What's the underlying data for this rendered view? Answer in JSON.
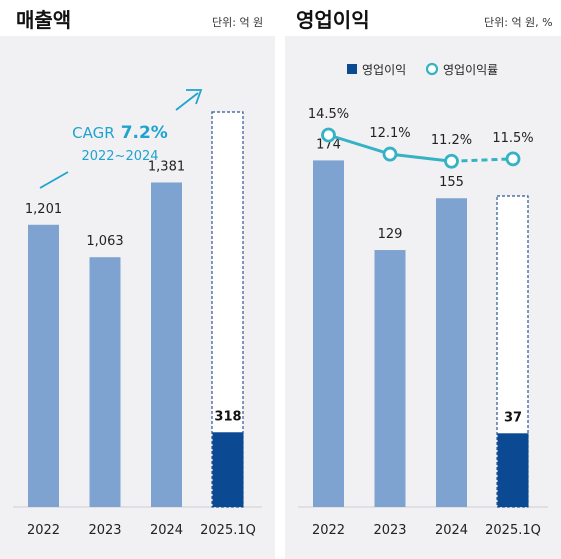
{
  "left_panel": {
    "title": "매출액",
    "unit": "단위: 억 원",
    "cagr_prefix": "CAGR",
    "cagr_value": "7.2%",
    "cagr_period": "2022~2024"
  },
  "right_panel": {
    "title": "영업이익",
    "unit": "단위: 억 원, %",
    "legend_bar": "영업이익",
    "legend_line": "영업이익률"
  },
  "colors": {
    "bar": "#7fa3d0",
    "bar_current": "#0b4a93",
    "line": "#35b3c4",
    "dash_box": "#2f5596",
    "cagr": "#1fa3cf"
  },
  "chart_data": [
    {
      "type": "bar",
      "title": "매출액",
      "categories": [
        "2022",
        "2023",
        "2024",
        "2025.1Q"
      ],
      "values": [
        1201,
        1063,
        1381,
        318
      ],
      "labels": [
        "1,201",
        "1,063",
        "1,381",
        "318"
      ],
      "ylim": [
        0,
        2000
      ]
    },
    {
      "type": "bar",
      "title": "영업이익",
      "categories": [
        "2022",
        "2023",
        "2024",
        "2025.1Q"
      ],
      "series": [
        {
          "name": "영업이익",
          "type": "bar",
          "values": [
            174,
            129,
            155,
            37
          ],
          "labels": [
            "174",
            "129",
            "155",
            "37"
          ]
        },
        {
          "name": "영업이익률",
          "type": "line",
          "values": [
            14.5,
            12.1,
            11.2,
            11.5
          ],
          "labels": [
            "14.5%",
            "12.1%",
            "11.2%",
            "11.5%"
          ]
        }
      ],
      "ylim": [
        0,
        250
      ]
    }
  ]
}
